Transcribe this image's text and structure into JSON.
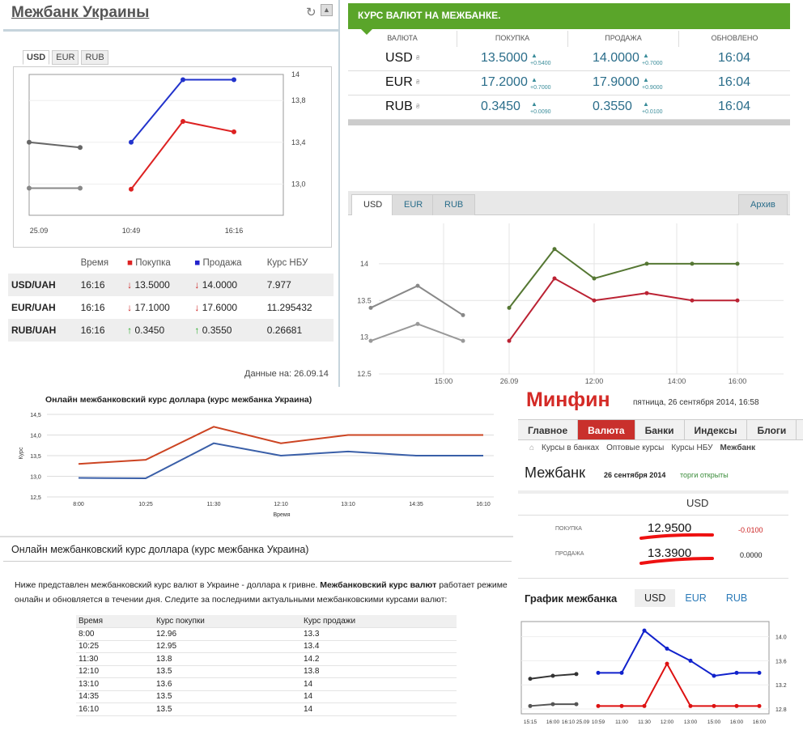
{
  "mezhbank": {
    "title": "Межбанк Украины",
    "tabs": [
      "USD",
      "EUR",
      "RUB"
    ],
    "chart": {
      "x_labels": [
        "25.09",
        "10:49",
        "16:16"
      ],
      "y_labels": [
        "13,0",
        "13,4",
        "13,8",
        "14"
      ],
      "series": [
        {
          "name": "prev_buy",
          "color": "#666666",
          "x": [
            0,
            1
          ],
          "y": [
            13.4,
            13.35
          ]
        },
        {
          "name": "prev_sell",
          "color": "#888888",
          "x": [
            0,
            1
          ],
          "y": [
            12.96,
            12.96
          ]
        },
        {
          "name": "buy",
          "color": "#dd2222",
          "x": [
            2,
            3,
            4
          ],
          "y": [
            12.95,
            13.6,
            13.5
          ]
        },
        {
          "name": "sell",
          "color": "#2233cc",
          "x": [
            2,
            3,
            4
          ],
          "y": [
            13.4,
            14.0,
            14.0
          ]
        }
      ]
    },
    "table": {
      "headers": [
        "Время",
        "Покупка",
        "Продажа",
        "Курс НБУ"
      ],
      "rows": [
        {
          "pair": "USD/UAH",
          "time": "16:16",
          "buy": "13.5000",
          "sell": "14.0000",
          "nbu": "7.977"
        },
        {
          "pair": "EUR/UAH",
          "time": "16:16",
          "buy": "17.1000",
          "sell": "17.6000",
          "nbu": "11.295432"
        },
        {
          "pair": "RUB/UAH",
          "time": "16:16",
          "buy": "0.3450",
          "sell": "0.3550",
          "nbu": "0.26681"
        }
      ],
      "arrows": {
        "down": "↓",
        "up": "↑"
      }
    },
    "date_note": "Данные на: 26.09.14"
  },
  "kurs": {
    "header": "КУРС ВАЛЮТ НА МЕЖБАНКЕ.",
    "columns": [
      "ВАЛЮТА",
      "ПОКУПКА",
      "ПРОДАЖА",
      "ОБНОВЛЕНО"
    ],
    "rows": [
      {
        "cur": "USD",
        "buy": "13.5000",
        "buy_d": "+0.5400",
        "sell": "14.0000",
        "sell_d": "+0.7000",
        "time": "16:04"
      },
      {
        "cur": "EUR",
        "buy": "17.2000",
        "buy_d": "+0.7000",
        "sell": "17.9000",
        "sell_d": "+0.9000",
        "time": "16:04"
      },
      {
        "cur": "RUB",
        "buy": "0.3450",
        "buy_d": "+0.0090",
        "sell": "0.3550",
        "sell_d": "+0.0100",
        "time": "16:04"
      }
    ]
  },
  "archive": {
    "tabs": [
      "USD",
      "EUR",
      "RUB"
    ],
    "archive_btn": "Архив",
    "y_labels": [
      "12.5",
      "13",
      "13.5",
      "14"
    ],
    "x_labels": [
      "15:00",
      "26.09",
      "12:00",
      "14:00",
      "16:00"
    ],
    "series": [
      {
        "name": "prev_buy",
        "color": "#999999",
        "x": [
          0,
          1,
          2
        ],
        "y": [
          12.95,
          13.18,
          12.95
        ]
      },
      {
        "name": "prev_sell",
        "color": "#888888",
        "x": [
          0,
          1,
          2
        ],
        "y": [
          13.4,
          13.7,
          13.3
        ]
      },
      {
        "name": "buy",
        "color": "#bb2233",
        "x": [
          3,
          4,
          5,
          6,
          7,
          8
        ],
        "y": [
          12.95,
          13.8,
          13.5,
          13.6,
          13.5,
          13.5
        ]
      },
      {
        "name": "sell",
        "color": "#557733",
        "x": [
          3,
          4,
          5,
          6,
          7,
          8
        ],
        "y": [
          13.4,
          14.2,
          13.8,
          14.0,
          14.0,
          14.0
        ]
      }
    ]
  },
  "online_chart": {
    "title": "Онлайн межбанковский курс доллара (курс межбанка Украина)",
    "xlabel": "Время",
    "ylabel": "Курс",
    "x": [
      "8:00",
      "10:25",
      "11:30",
      "12:10",
      "13:10",
      "14:35",
      "16:10"
    ],
    "y_labels": [
      "12,5",
      "13,0",
      "13,5",
      "14,0",
      "14,5"
    ],
    "buy": [
      12.96,
      12.95,
      13.8,
      13.5,
      13.6,
      13.5,
      13.5
    ],
    "sell": [
      13.3,
      13.4,
      14.2,
      13.8,
      14.0,
      14.0,
      14.0
    ]
  },
  "online_text": {
    "heading": "Онлайн межбанковский курс доллара (курс межбанка Украина)",
    "p1": "Ниже представлен межбанковский курс валют в Украине - доллара к гривне.",
    "p_bold": "Межбанковский курс валют",
    "p2": "работает режиме онлайн и обновляется в течении дня. Следите за последними актуальными межбанковскими курсами валют:",
    "table_headers": [
      "Время",
      "Курс покупки",
      "Курс продажи"
    ],
    "rows": [
      [
        "8:00",
        "12.96",
        "13.3"
      ],
      [
        "10:25",
        "12.95",
        "13.4"
      ],
      [
        "11:30",
        "13.8",
        "14.2"
      ],
      [
        "12:10",
        "13.5",
        "13.8"
      ],
      [
        "13:10",
        "13.6",
        "14"
      ],
      [
        "14:35",
        "13.5",
        "14"
      ],
      [
        "16:10",
        "13.5",
        "14"
      ]
    ]
  },
  "minfin": {
    "logo": "Минфин",
    "date": "пятница, 26 сентября 2014, 16:58",
    "nav": [
      "Главное",
      "Валюта",
      "Банки",
      "Индексы",
      "Блоги"
    ],
    "sub": [
      "Курсы в банках",
      "Оптовые курсы",
      "Курсы НБУ",
      "Межбанк"
    ],
    "mezhbank": "Межбанк",
    "mz_date": "26 сентября 2014",
    "status": "торги открыты",
    "currency": "USD",
    "buy_label": "ПОКУПКА",
    "buy": "12.9500",
    "buy_change": "-0.0100",
    "sell_label": "ПРОДАЖА",
    "sell": "13.3900",
    "sell_change": "0.0000",
    "graph_title": "График межбанка",
    "graph_tabs": [
      "USD",
      "EUR",
      "RUB"
    ],
    "chart": {
      "x_labels": [
        "15:15",
        "16:00",
        "16:10",
        "25.09",
        "10:59",
        "11:00",
        "11:30",
        "12:00",
        "13:00",
        "15:00",
        "16:00",
        "16:00"
      ],
      "y_labels": [
        "12.8",
        "13.2",
        "13.6",
        "14.0"
      ],
      "series": [
        {
          "name": "prev_buy",
          "color": "#555555",
          "x": [
            0,
            1,
            2
          ],
          "y": [
            12.85,
            12.88,
            12.88
          ]
        },
        {
          "name": "prev_sell",
          "color": "#333333",
          "x": [
            0,
            1,
            2
          ],
          "y": [
            13.3,
            13.35,
            13.38
          ]
        },
        {
          "name": "buy",
          "color": "#dd1111",
          "x": [
            3,
            4,
            5,
            6,
            7,
            8,
            9,
            10
          ],
          "y": [
            12.85,
            12.85,
            12.85,
            13.55,
            12.85,
            12.85,
            12.85,
            12.85
          ]
        },
        {
          "name": "sell",
          "color": "#1122cc",
          "x": [
            3,
            4,
            5,
            6,
            7,
            8,
            9,
            10
          ],
          "y": [
            13.4,
            13.4,
            14.1,
            13.8,
            13.6,
            13.35,
            13.4,
            13.4
          ]
        }
      ]
    }
  }
}
